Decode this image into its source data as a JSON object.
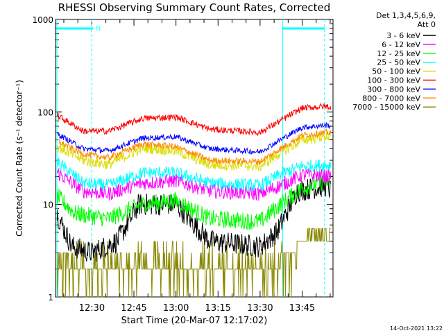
{
  "chart_data": {
    "type": "line",
    "title": "RHESSI Observing Summary Count Rates, Corrected",
    "xlabel": "Start Time (20-Mar-07 12:17:02)",
    "ylabel": "Corrected Count Rate (s⁻¹ detector⁻¹)",
    "y_scale": "log",
    "ylim": [
      1,
      1000
    ],
    "xlim": [
      "12:17:02",
      "13:56:00"
    ],
    "x_ticks": [
      "12:30",
      "12:45",
      "13:00",
      "13:15",
      "13:30",
      "13:45"
    ],
    "y_ticks": [
      "1",
      "10",
      "100",
      "1000"
    ],
    "legend_header": [
      "Det 1,3,4,5,6,9,",
      "Att 0"
    ],
    "legend_placement": "right",
    "series": [
      {
        "name": "3 - 6 keV",
        "color": "#000000"
      },
      {
        "name": "6 - 12 keV",
        "color": "#ff00ff"
      },
      {
        "name": "12 - 25 keV",
        "color": "#00ff00"
      },
      {
        "name": "25 - 50 keV",
        "color": "#00ffff"
      },
      {
        "name": "50 - 100 keV",
        "color": "#dddd00"
      },
      {
        "name": "100 - 300 keV",
        "color": "#ff0000"
      },
      {
        "name": "300 - 800 keV",
        "color": "#0000ff"
      },
      {
        "name": "800 - 7000 keV",
        "color": "#ff8800"
      },
      {
        "name": "7000 - 15000 keV",
        "color": "#888800"
      }
    ],
    "night_label": "N",
    "timestamp": "14-Oct-2021 13:22"
  }
}
